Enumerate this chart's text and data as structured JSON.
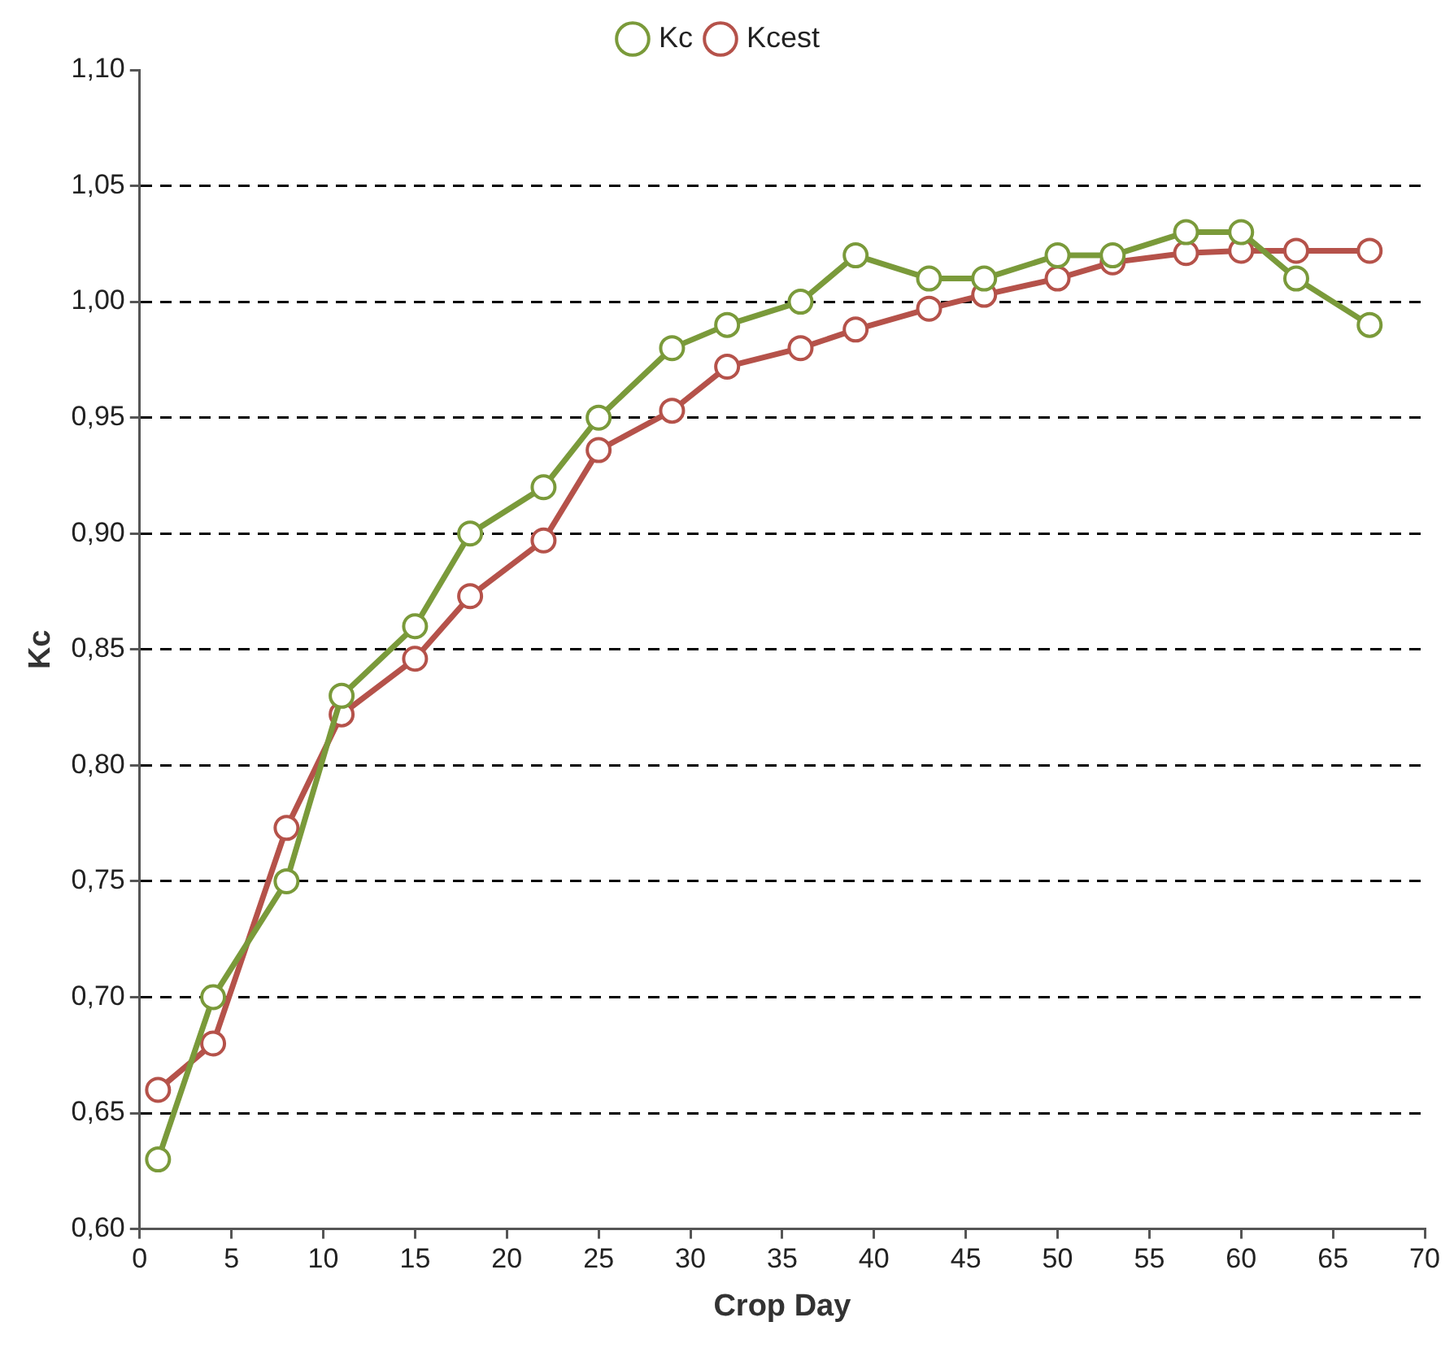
{
  "chart_data": {
    "type": "line",
    "xlabel": "Crop Day",
    "ylabel": "Kc",
    "x": [
      1,
      4,
      8,
      11,
      15,
      18,
      22,
      25,
      29,
      32,
      36,
      39,
      43,
      46,
      50,
      53,
      57,
      60,
      63,
      67
    ],
    "series": [
      {
        "name": "Kc",
        "color": "#7a9a3a",
        "values": [
          0.63,
          0.7,
          0.75,
          0.83,
          0.86,
          0.9,
          0.92,
          0.95,
          0.98,
          0.99,
          1.0,
          1.02,
          1.01,
          1.01,
          1.02,
          1.02,
          1.03,
          1.03,
          1.01,
          0.99
        ]
      },
      {
        "name": "Kcest",
        "color": "#b5524a",
        "values": [
          0.66,
          0.68,
          0.773,
          0.822,
          0.846,
          0.873,
          0.897,
          0.936,
          0.953,
          0.972,
          0.98,
          0.988,
          0.997,
          1.003,
          1.01,
          1.017,
          1.021,
          1.022,
          1.022,
          1.022
        ]
      }
    ],
    "xlim": [
      0,
      70
    ],
    "xticks": [
      0,
      5,
      10,
      15,
      20,
      25,
      30,
      35,
      40,
      45,
      50,
      55,
      60,
      65,
      70
    ],
    "ylim": [
      0.6,
      1.1
    ],
    "yticks": [
      {
        "value": 0.6,
        "label": "0,60"
      },
      {
        "value": 0.65,
        "label": "0,65"
      },
      {
        "value": 0.7,
        "label": "0,70"
      },
      {
        "value": 0.75,
        "label": "0,75"
      },
      {
        "value": 0.8,
        "label": "0,80"
      },
      {
        "value": 0.85,
        "label": "0,85"
      },
      {
        "value": 0.9,
        "label": "0,90"
      },
      {
        "value": 0.95,
        "label": "0,95"
      },
      {
        "value": 1.0,
        "label": "1,00"
      },
      {
        "value": 1.05,
        "label": "1,05"
      },
      {
        "value": 1.1,
        "label": "1,10"
      }
    ],
    "grid": "y",
    "legend": "top",
    "marker": "circle",
    "line_style": "solid"
  }
}
